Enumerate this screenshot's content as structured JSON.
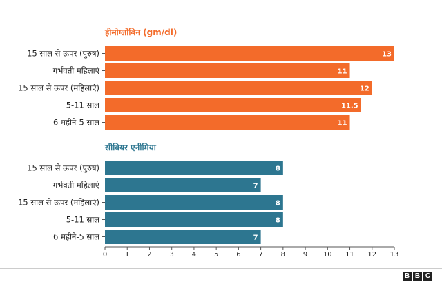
{
  "chart_data": {
    "type": "bar",
    "orientation": "horizontal",
    "x_ticks": [
      0,
      1,
      2,
      3,
      4,
      5,
      6,
      7,
      8,
      9,
      10,
      11,
      12,
      13
    ],
    "xlim": [
      0,
      13
    ],
    "groups": [
      {
        "title": "हीमोग्लोबिन (gm/dl)",
        "color": "#f36b2a",
        "categories": [
          "15 साल से ऊपर (पुरुष)",
          "गर्भवती महिलाएं",
          "15 साल से ऊपर (महिलाएं)",
          "5-11 साल",
          "6 महीने-5 साल"
        ],
        "values": [
          13,
          11,
          12,
          11.5,
          11
        ],
        "labels": [
          "13",
          "11",
          "12",
          "11.5",
          "11"
        ]
      },
      {
        "title": "सीवियर एनीमिया",
        "color": "#2d7690",
        "categories": [
          "15 साल से ऊपर (पुरुष)",
          "गर्भवती महिलाएं",
          "15 साल से ऊपर (महिलाएं)",
          "5-11 साल",
          "6 महीने-5 साल"
        ],
        "values": [
          8,
          7,
          8,
          8,
          7
        ],
        "labels": [
          "8",
          "7",
          "8",
          "8",
          "7"
        ]
      }
    ]
  },
  "footer": {
    "logo_letters": [
      "B",
      "B",
      "C"
    ]
  }
}
